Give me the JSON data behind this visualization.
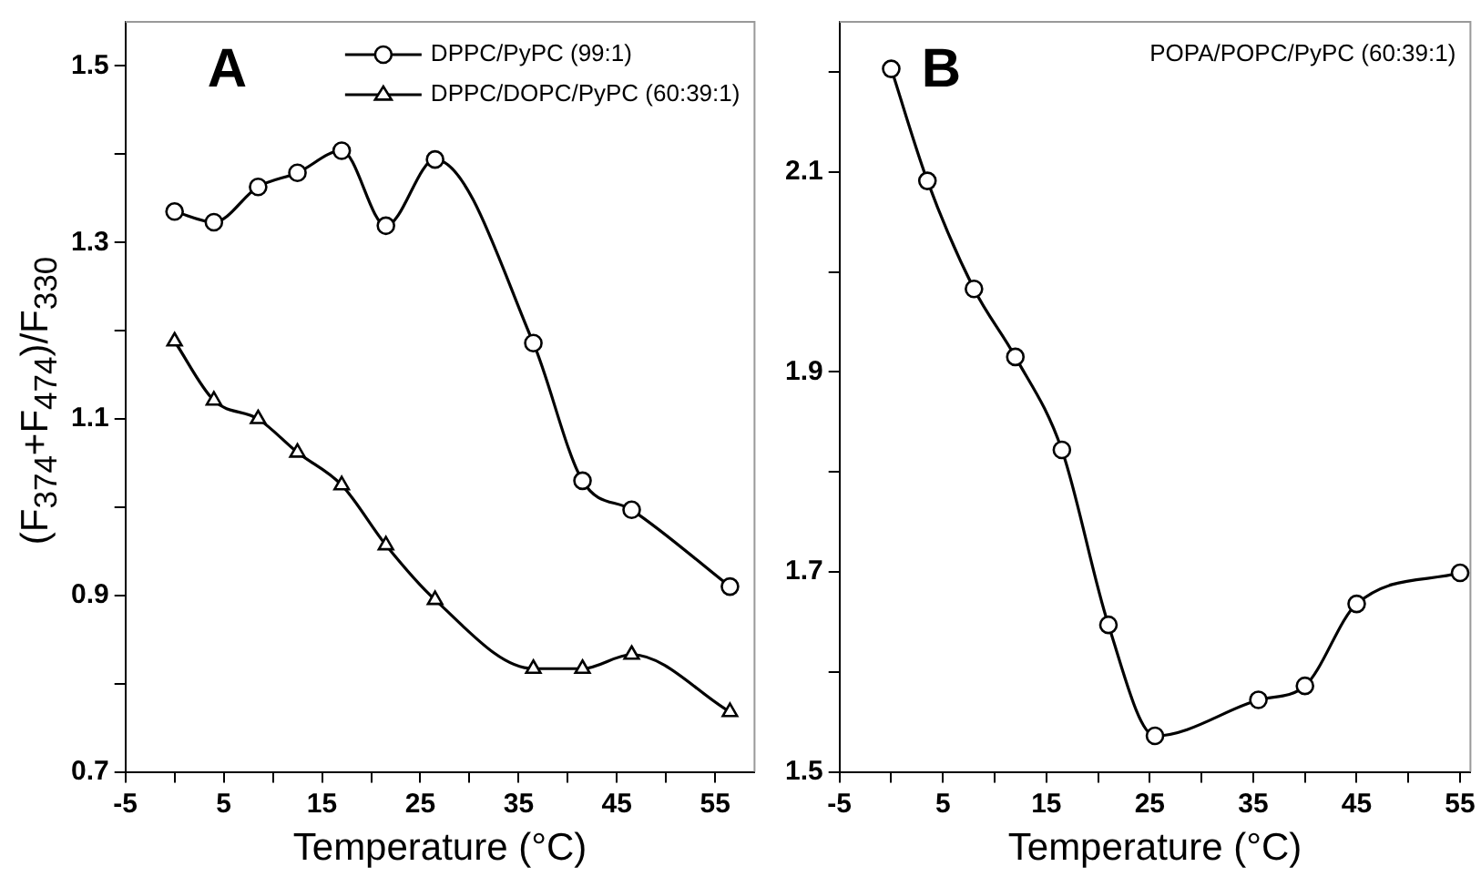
{
  "chart_data": [
    {
      "type": "line",
      "title": "A",
      "xlabel": "Temperature (°C)",
      "ylabel": "(F$_{374}$+F$_{474}$)/F$_{330}$",
      "legend": "top right",
      "grid": false,
      "x": [
        0,
        4,
        8.5,
        12.5,
        17,
        21.5,
        26.5,
        36.5,
        41.5,
        46.5,
        56.5
      ],
      "xlim": [
        -5,
        59
      ],
      "xticks": [
        -5,
        {
          "value": 0,
          "label": null
        },
        5,
        {
          "value": 10,
          "label": null
        },
        15,
        {
          "value": 20,
          "label": null
        },
        25,
        {
          "value": 30,
          "label": null
        },
        35,
        {
          "value": 40,
          "label": null
        },
        45,
        {
          "value": 50,
          "label": null
        },
        55
      ],
      "ylim": [
        0.7,
        1.55
      ],
      "yticks": [
        0.7,
        {
          "value": 0.8,
          "label": null
        },
        0.9,
        {
          "value": 1.0,
          "label": null
        },
        1.1,
        {
          "value": 1.2,
          "label": null
        },
        1.3,
        {
          "value": 1.4,
          "label": null
        },
        1.5
      ],
      "series": [
        {
          "name": "DPPC/PyPC (99:1)",
          "color": "#000000",
          "marker": "circle",
          "values": [
            1.335,
            1.323,
            1.363,
            1.379,
            1.404,
            1.319,
            1.394,
            1.186,
            1.03,
            0.997,
            0.91
          ]
        },
        {
          "name": "DPPC/DOPC/PyPC (60:39:1)",
          "color": "#000000",
          "marker": "triangle",
          "values": [
            1.188,
            1.121,
            1.1,
            1.062,
            1.025,
            0.957,
            0.895,
            0.817,
            0.817,
            0.833,
            0.768
          ]
        }
      ]
    },
    {
      "type": "line",
      "title": "B",
      "xlabel": "Temperature (°C)",
      "grid": false,
      "x": [
        0,
        3.5,
        8,
        12,
        16.5,
        21,
        25.5,
        35.5,
        40,
        45,
        55
      ],
      "xlim": [
        -5,
        56
      ],
      "xticks": [
        -5,
        {
          "value": 0,
          "label": null
        },
        5,
        {
          "value": 10,
          "label": null
        },
        15,
        {
          "value": 20,
          "label": null
        },
        25,
        {
          "value": 30,
          "label": null
        },
        35,
        {
          "value": 40,
          "label": null
        },
        45,
        {
          "value": 50,
          "label": null
        },
        55
      ],
      "ylim": [
        1.5,
        2.25
      ],
      "yticks": [
        1.5,
        {
          "value": 1.6,
          "label": null
        },
        1.7,
        {
          "value": 1.8,
          "label": null
        },
        1.9,
        {
          "value": 2.0,
          "label": null
        },
        2.1,
        {
          "value": 2.2,
          "label": null
        }
      ],
      "series": [
        {
          "name": "POPA/POPC/PyPC (60:39:1)",
          "color": "#000000",
          "marker": "circle",
          "values": [
            2.203,
            2.091,
            1.983,
            1.915,
            1.822,
            1.647,
            1.536,
            1.572,
            1.586,
            1.668,
            1.699
          ]
        }
      ]
    }
  ]
}
